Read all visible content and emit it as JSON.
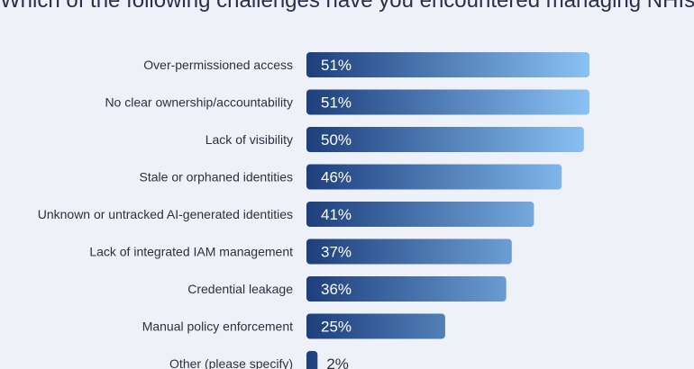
{
  "chart_data": {
    "type": "bar",
    "orientation": "horizontal",
    "title": "Which of the following challenges have you encountered managing NHIs?",
    "categories": [
      "Over-permissioned access",
      "No clear ownership/accountability",
      "Lack of visibility",
      "Stale or orphaned identities",
      "Unknown or untracked AI-generated identities",
      "Lack of integrated IAM management",
      "Credential leakage",
      "Manual policy enforcement",
      "Other (please specify)"
    ],
    "values": [
      51,
      51,
      50,
      46,
      41,
      37,
      36,
      25,
      2
    ],
    "value_labels": [
      "51%",
      "51%",
      "50%",
      "46%",
      "41%",
      "37%",
      "36%",
      "25%",
      "2%"
    ],
    "unit": "%",
    "xlim": [
      0,
      51
    ],
    "grid": false,
    "legend": "none",
    "colors": {
      "bar_start": "#1d3f7c",
      "bar_end": "#8ac2f4",
      "background": "#eef1f7",
      "text": "#2c3040"
    }
  }
}
